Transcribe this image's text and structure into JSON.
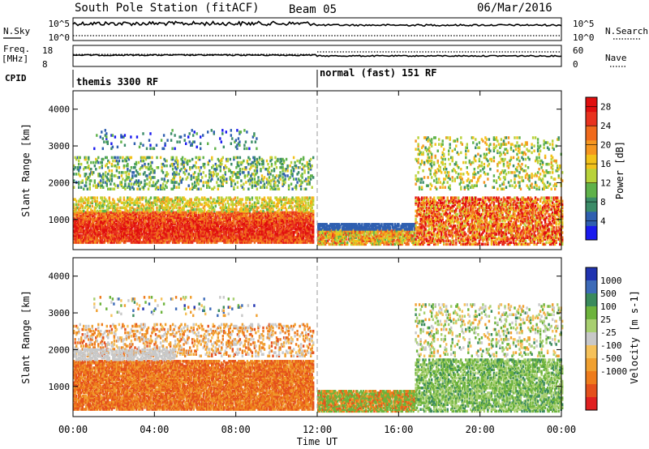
{
  "header": {
    "station": "South Pole Station (fitACF)",
    "beam": "Beam 05",
    "date": "06/Mar/2016"
  },
  "left_labels": {
    "nsky": "N.Sky",
    "freq_line1": "Freq.",
    "freq_line2": "[MHz]",
    "cpid": "CPID"
  },
  "right_labels": {
    "nsearch": "N.Search",
    "nave": "Nave"
  },
  "top_ticks": {
    "noise_left": [
      "10^5",
      "10^0"
    ],
    "noise_right": [
      "10^5",
      "10^0"
    ],
    "freq_left": [
      "18",
      "8"
    ],
    "freq_right": [
      "60",
      "0"
    ]
  },
  "cpid_labels": [
    {
      "text": "themis 3300 RF",
      "start_hour": 0
    },
    {
      "text": "normal (fast) 151 RF",
      "start_hour": 12
    }
  ],
  "colors": {
    "power": [
      "#1a1aee",
      "#2f5fb0",
      "#3b8c68",
      "#5fb24a",
      "#b8d23a",
      "#f2c21a",
      "#f5961f",
      "#f06a1c",
      "#e8321e",
      "#e00e0e"
    ],
    "velocity": [
      "#2033b0",
      "#3d6bb8",
      "#3a8a5c",
      "#6db33c",
      "#a8cf70",
      "#c8c8c8",
      "#f5c15a",
      "#f0a030",
      "#ee7c1c",
      "#e4501c",
      "#e02020"
    ],
    "ground_scatter": "#c0c0c0"
  },
  "chart_data": [
    {
      "type": "heatmap",
      "name": "Power",
      "xlabel": "",
      "ylabel": "Slant Range [km]",
      "xlim": [
        0,
        24
      ],
      "ylim": [
        180,
        4500
      ],
      "xticks": [
        "00:00",
        "04:00",
        "08:00",
        "12:00",
        "16:00",
        "20:00",
        "00:00"
      ],
      "yticks": [
        1000,
        2000,
        3000,
        4000
      ],
      "colorbar": {
        "label": "Power [dB]",
        "range": [
          0,
          30
        ],
        "ticks": [
          4,
          8,
          12,
          16,
          20,
          24,
          28
        ]
      },
      "cpid_change_hour": 12
    },
    {
      "type": "heatmap",
      "name": "Velocity",
      "xlabel": "Time UT",
      "ylabel": "Slant Range [km]",
      "xlim": [
        0,
        24
      ],
      "ylim": [
        180,
        4500
      ],
      "xticks": [
        "00:00",
        "04:00",
        "08:00",
        "12:00",
        "16:00",
        "20:00",
        "00:00"
      ],
      "yticks": [
        1000,
        2000,
        3000,
        4000
      ],
      "colorbar": {
        "label": "Velocity [m s-1]",
        "ticks": [
          "1000",
          "500",
          "100",
          "25",
          "-25",
          "-100",
          "-500",
          "-1000"
        ]
      },
      "cpid_change_hour": 12
    }
  ]
}
